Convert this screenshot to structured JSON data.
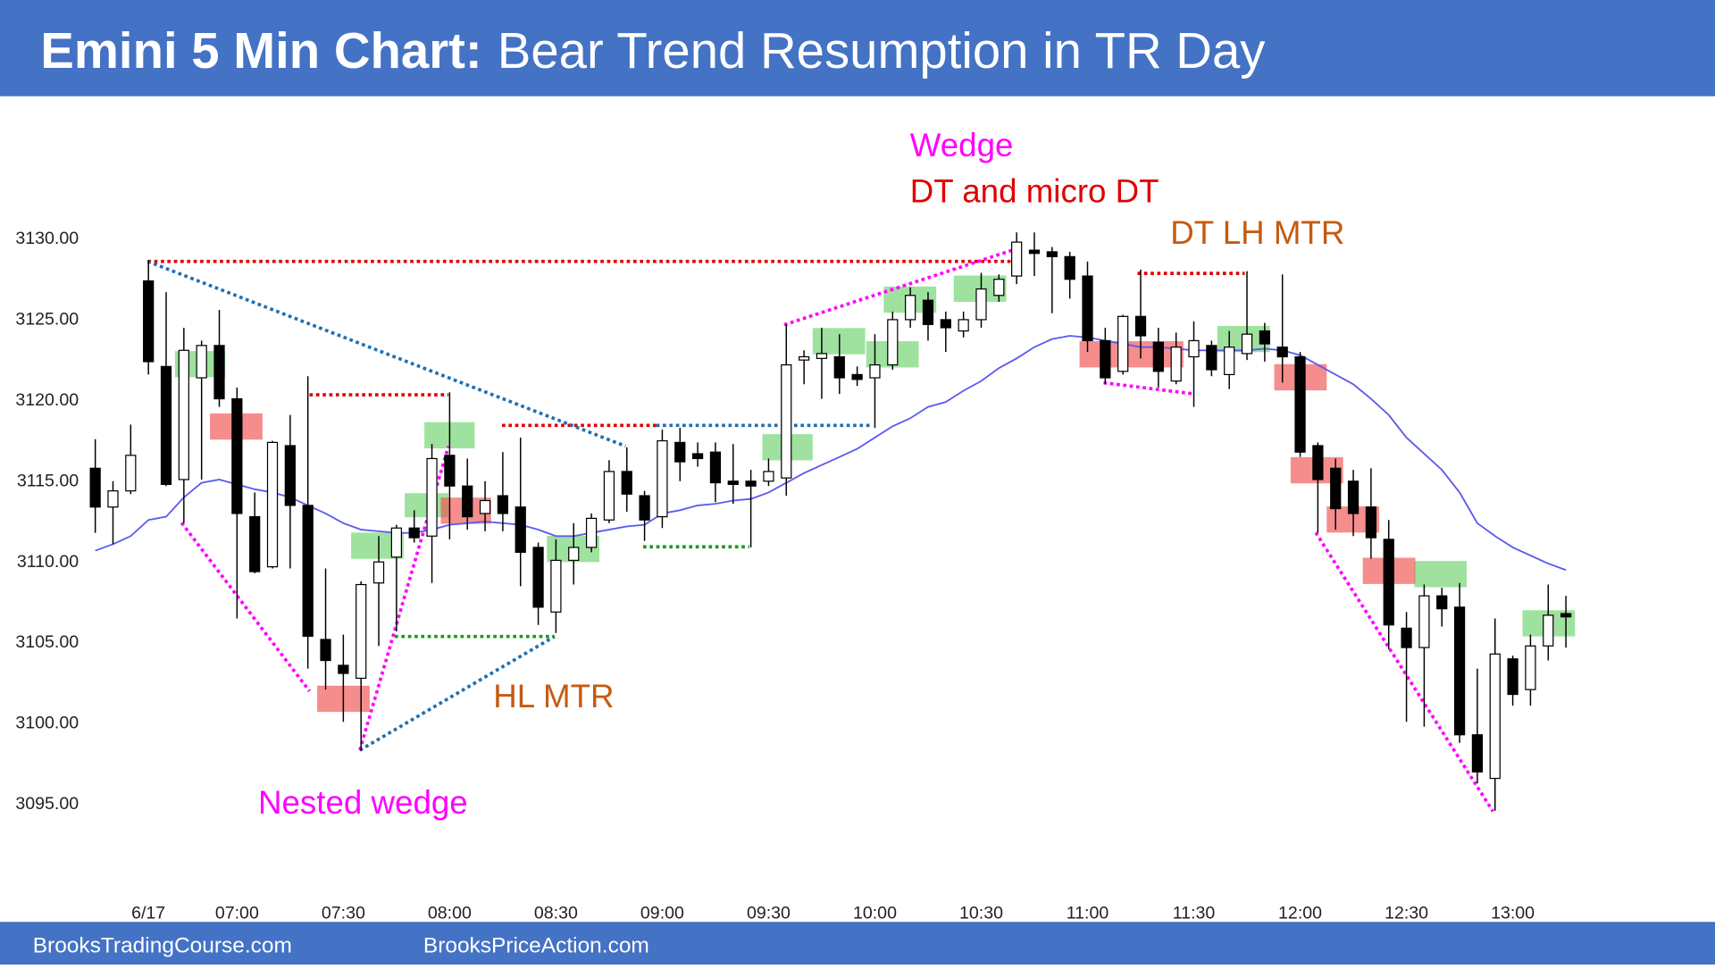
{
  "header": {
    "title_bold": "Emini 5 Min Chart:",
    "title_rest": "Bear Trend Resumption in TR Day"
  },
  "chart_data": {
    "type": "candlestick",
    "categories": [
      null,
      null,
      null,
      "6/17",
      null,
      null,
      null,
      null,
      "07:00",
      null,
      null,
      null,
      null,
      null,
      "07:30",
      null,
      null,
      null,
      null,
      null,
      "08:00",
      null,
      null,
      null,
      null,
      null,
      "08:30",
      null,
      null,
      null,
      null,
      null,
      "09:00",
      null,
      null,
      null,
      null,
      null,
      "09:30",
      null,
      null,
      null,
      null,
      null,
      "10:00",
      null,
      null,
      null,
      null,
      null,
      "10:30",
      null,
      null,
      null,
      null,
      null,
      "11:00",
      null,
      null,
      null,
      null,
      null,
      "11:30",
      null,
      null,
      null,
      null,
      null,
      "12:00",
      null,
      null,
      null,
      null,
      null,
      "12:30",
      null,
      null,
      null,
      null,
      null,
      "13:00",
      null,
      null,
      null
    ],
    "open": [
      3115.7,
      3113.3,
      3114.3,
      3127.3,
      3122.0,
      3115.0,
      3121.3,
      3123.3,
      3120.0,
      3112.7,
      3109.6,
      3117.1,
      3113.4,
      3105.1,
      3103.5,
      3102.7,
      3108.6,
      3110.2,
      3112.0,
      3111.5,
      3116.5,
      3114.6,
      3112.9,
      3114.0,
      3113.3,
      3110.8,
      3106.8,
      3110.0,
      3110.8,
      3112.5,
      3115.5,
      3114.0,
      3112.7,
      3117.3,
      3116.6,
      3116.7,
      3114.9,
      3114.9,
      3114.9,
      3115.1,
      3122.4,
      3122.5,
      3122.6,
      3121.5,
      3121.3,
      3122.1,
      3124.9,
      3126.1,
      3124.9,
      3124.2,
      3124.9,
      3126.4,
      3127.6,
      3129.2,
      3129.1,
      3128.8,
      3127.6,
      3123.6,
      3121.7,
      3125.1,
      3123.5,
      3121.1,
      3122.6,
      3123.3,
      3121.5,
      3122.8,
      3124.2,
      3123.2,
      3122.6,
      3117.1,
      3115.7,
      3114.9,
      3113.3,
      3111.3,
      3105.8,
      3104.6,
      3107.8,
      3107.1,
      3099.2,
      3096.5,
      3103.9,
      3102.0,
      3104.7,
      3106.7
    ],
    "high": [
      3117.5,
      3114.9,
      3118.4,
      3128.6,
      3126.6,
      3124.4,
      3123.6,
      3125.5,
      3120.7,
      3114.2,
      3117.4,
      3119.0,
      3121.4,
      3109.5,
      3105.4,
      3108.7,
      3111.5,
      3112.2,
      3113.1,
      3117.2,
      3120.4,
      3116.3,
      3114.9,
      3116.7,
      3117.6,
      3111.1,
      3111.3,
      3112.3,
      3112.9,
      3116.2,
      3117.0,
      3114.3,
      3118.1,
      3118.2,
      3117.3,
      3117.3,
      3117.2,
      3115.6,
      3116.3,
      3124.6,
      3123.0,
      3124.4,
      3124.0,
      3122.0,
      3124.0,
      3125.4,
      3126.9,
      3126.6,
      3125.4,
      3125.4,
      3127.8,
      3127.7,
      3130.3,
      3130.3,
      3129.4,
      3129.1,
      3128.5,
      3124.4,
      3125.2,
      3128.0,
      3124.4,
      3124.1,
      3124.8,
      3123.6,
      3124.2,
      3127.9,
      3124.7,
      3127.7,
      3122.9,
      3117.3,
      3116.3,
      3115.6,
      3115.7,
      3112.5,
      3106.8,
      3108.5,
      3108.3,
      3108.6,
      3103.3,
      3106.4,
      3104.1,
      3105.4,
      3108.5,
      3107.8
    ],
    "low": [
      3111.7,
      3111.0,
      3114.1,
      3121.5,
      3114.6,
      3112.3,
      3115.0,
      3119.5,
      3106.4,
      3109.2,
      3109.5,
      3109.5,
      3103.3,
      3102.0,
      3100.0,
      3098.2,
      3104.7,
      3105.6,
      3111.1,
      3108.6,
      3111.3,
      3111.9,
      3111.8,
      3111.8,
      3108.4,
      3106.0,
      3105.5,
      3108.5,
      3110.5,
      3112.3,
      3113.0,
      3111.2,
      3112.0,
      3114.9,
      3115.8,
      3113.6,
      3113.5,
      3110.8,
      3114.6,
      3114.0,
      3120.9,
      3120.0,
      3120.3,
      3120.8,
      3118.2,
      3121.8,
      3124.4,
      3123.6,
      3122.9,
      3123.8,
      3124.4,
      3126.0,
      3127.1,
      3127.6,
      3125.3,
      3126.2,
      3122.9,
      3120.9,
      3121.5,
      3122.5,
      3120.7,
      3120.9,
      3119.5,
      3121.4,
      3120.6,
      3122.4,
      3122.3,
      3121.0,
      3116.4,
      3111.7,
      3111.9,
      3111.5,
      3110.1,
      3104.5,
      3100.0,
      3099.7,
      3105.9,
      3098.7,
      3096.2,
      3094.5,
      3101.0,
      3101.0,
      3103.8,
      3104.6
    ],
    "close": [
      3113.3,
      3114.3,
      3116.5,
      3122.3,
      3114.7,
      3123.0,
      3123.3,
      3120.0,
      3112.9,
      3109.3,
      3117.3,
      3113.4,
      3105.3,
      3103.8,
      3103.0,
      3108.5,
      3109.9,
      3112.0,
      3111.4,
      3116.3,
      3114.6,
      3112.7,
      3113.7,
      3112.9,
      3110.5,
      3107.1,
      3110.0,
      3110.8,
      3112.6,
      3115.5,
      3114.1,
      3112.5,
      3117.4,
      3116.1,
      3116.3,
      3114.8,
      3114.7,
      3114.6,
      3115.5,
      3122.1,
      3122.6,
      3122.8,
      3121.3,
      3121.2,
      3122.1,
      3124.9,
      3126.4,
      3124.6,
      3124.4,
      3124.9,
      3126.8,
      3127.4,
      3129.7,
      3129.0,
      3128.8,
      3127.4,
      3123.6,
      3121.3,
      3125.1,
      3123.9,
      3121.7,
      3123.2,
      3123.6,
      3121.8,
      3123.2,
      3124.0,
      3123.4,
      3122.6,
      3116.7,
      3115.0,
      3113.2,
      3112.9,
      3111.4,
      3106.0,
      3104.6,
      3107.8,
      3107.0,
      3099.2,
      3096.9,
      3104.2,
      3101.7,
      3104.7,
      3106.6,
      3106.5
    ],
    "up_color": "#ffffff",
    "down_color": "#000000",
    "ema": {
      "color": "#5b5bf0",
      "values": [
        3110.6,
        3111.0,
        3111.5,
        3112.5,
        3112.7,
        3113.9,
        3114.8,
        3115.0,
        3114.7,
        3114.4,
        3114.2,
        3113.9,
        3113.4,
        3112.9,
        3112.3,
        3111.9,
        3111.8,
        3111.7,
        3111.7,
        3111.9,
        3112.2,
        3112.3,
        3112.4,
        3112.3,
        3112.2,
        3111.9,
        3111.5,
        3111.5,
        3111.7,
        3111.9,
        3112.1,
        3112.2,
        3112.9,
        3113.1,
        3113.4,
        3113.5,
        3113.7,
        3113.8,
        3114.2,
        3114.8,
        3115.4,
        3115.9,
        3116.4,
        3116.9,
        3117.6,
        3118.3,
        3118.8,
        3119.5,
        3119.8,
        3120.5,
        3121.1,
        3121.9,
        3122.5,
        3123.2,
        3123.7,
        3123.9,
        3123.8,
        3123.6,
        3123.4,
        3123.2,
        3123.2,
        3123.1,
        3123.0,
        3123.0,
        3123.0,
        3123.0,
        3123.1,
        3123.0,
        3122.7,
        3122.1,
        3121.5,
        3120.9,
        3120.0,
        3119.0,
        3117.6,
        3116.6,
        3115.6,
        3114.2,
        3112.3,
        3111.5,
        3110.8,
        3110.3,
        3109.8,
        3109.4
      ]
    },
    "ylim": [
      3090,
      3138
    ],
    "yticks": [
      {
        "value": 3095,
        "label": "3095.00"
      },
      {
        "value": 3100,
        "label": "3100.00"
      },
      {
        "value": 3105,
        "label": "3105.00"
      },
      {
        "value": 3110,
        "label": "3110.00"
      },
      {
        "value": 3115,
        "label": "3115.00"
      },
      {
        "value": 3120,
        "label": "3120.00"
      },
      {
        "value": 3125,
        "label": "3125.00"
      },
      {
        "value": 3130,
        "label": "3130.00"
      }
    ],
    "annotations": [
      {
        "text": "Wedge",
        "color": "#ff00ff"
      },
      {
        "text": "DT and micro DT",
        "color": "#e00000"
      },
      {
        "text": "DT LH MTR",
        "color": "#c55a11"
      },
      {
        "text": "HL MTR",
        "color": "#c55a11"
      },
      {
        "text": "Nested wedge",
        "color": "#ff00ff"
      }
    ]
  },
  "footer": {
    "left": "BrooksTradingCourse.com",
    "right": "BrooksPriceAction.com"
  }
}
